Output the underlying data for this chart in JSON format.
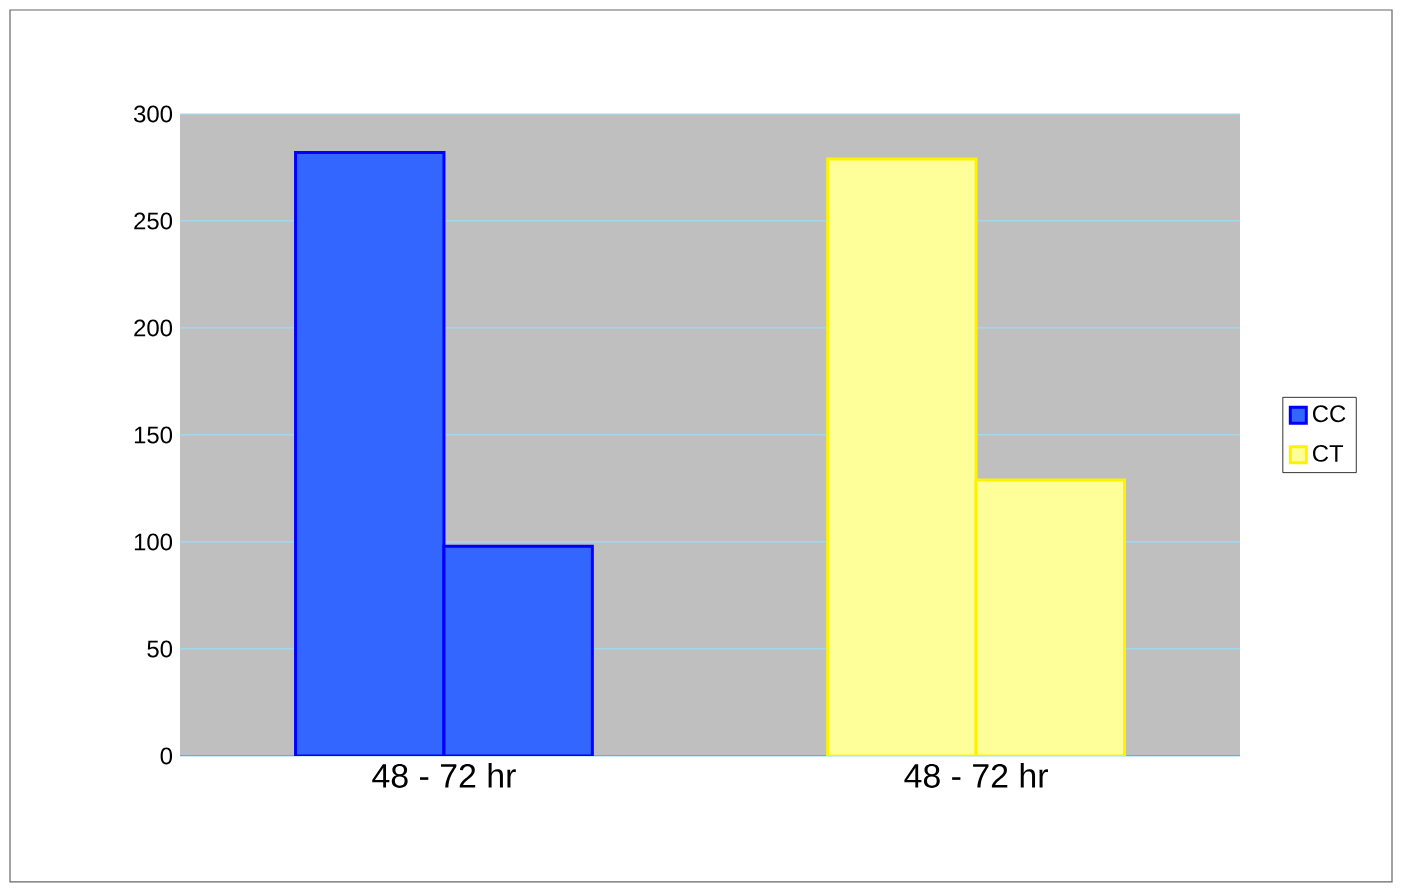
{
  "chart_data": {
    "type": "bar",
    "categories": [
      "48 - 72 hr",
      "48 - 72 hr"
    ],
    "series": [
      {
        "name": "CC",
        "color": "#3366ff",
        "values": [
          282,
          null
        ]
      },
      {
        "color": "#3366ff",
        "values": [
          98,
          null
        ]
      },
      {
        "name": "CT",
        "color": "#ffff99",
        "values": [
          null,
          279
        ]
      },
      {
        "color": "#ffff99",
        "values": [
          null,
          129
        ]
      }
    ],
    "ylim": [
      0,
      300
    ],
    "yticks": [
      0,
      50,
      100,
      150,
      200,
      250,
      300
    ],
    "grid": "y",
    "legend": "right"
  }
}
